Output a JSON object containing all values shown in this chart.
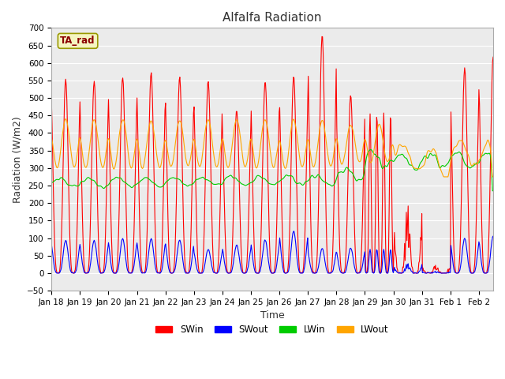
{
  "title": "Alfalfa Radiation",
  "xlabel": "Time",
  "ylabel": "Radiation (W/m2)",
  "tag_label": "TA_rad",
  "ylim": [
    -50,
    700
  ],
  "xlim_days": [
    0,
    15.5
  ],
  "tick_labels": [
    "Jan 18",
    "Jan 19",
    "Jan 20",
    "Jan 21",
    "Jan 22",
    "Jan 23",
    "Jan 24",
    "Jan 25",
    "Jan 26",
    "Jan 27",
    "Jan 28",
    "Jan 29",
    "Jan 30",
    "Jan 31",
    "Feb 1",
    "Feb 2"
  ],
  "tick_positions": [
    0,
    1,
    2,
    3,
    4,
    5,
    6,
    7,
    8,
    9,
    10,
    11,
    12,
    13,
    14,
    15
  ],
  "colors": {
    "SWin": "#ff0000",
    "SWout": "#0000ff",
    "LWin": "#00cc00",
    "LWout": "#ffa500"
  },
  "SWin_peaks": [
    553,
    548,
    560,
    573,
    558,
    550,
    465,
    548,
    563,
    680,
    506,
    480,
    210,
    140,
    585,
    620
  ],
  "SWout_peaks": [
    93,
    93,
    98,
    98,
    95,
    68,
    80,
    95,
    120,
    70,
    72,
    72,
    30,
    25,
    100,
    105
  ],
  "LWin_base_early": 262,
  "LWin_base_late": 330,
  "LWout_base_early": 298,
  "LWout_peak_early": 445,
  "background_color": "#ebebeb",
  "title_fontsize": 11,
  "axis_fontsize": 9,
  "linewidth": 0.8
}
